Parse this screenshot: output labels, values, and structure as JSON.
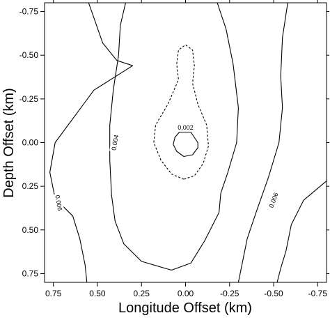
{
  "chart_data": {
    "type": "contour",
    "xlabel": "Longitude Offset (km)",
    "ylabel": "Depth Offset (km)",
    "xlim": [
      0.8,
      -0.8
    ],
    "ylim": [
      -0.8,
      0.8
    ],
    "x_ticks": [
      "0.75",
      "0.50",
      "0.25",
      "0.00",
      "-0.25",
      "-0.50",
      "-0.75"
    ],
    "x_tick_values": [
      0.75,
      0.5,
      0.25,
      0.0,
      -0.25,
      -0.5,
      -0.75
    ],
    "y_ticks": [
      "-0.75",
      "-0.50",
      "-0.25",
      "0.00",
      "0.25",
      "0.50",
      "0.75"
    ],
    "y_tick_values": [
      -0.75,
      -0.5,
      -0.25,
      0.0,
      0.25,
      0.5,
      0.75
    ],
    "grid": false,
    "contours": [
      {
        "level": "0.002",
        "style": "solid",
        "label_at": [
          0.0,
          -0.085
        ],
        "points": [
          [
            0.035,
            -0.06
          ],
          [
            -0.03,
            -0.06
          ],
          [
            -0.07,
            0.0
          ],
          [
            -0.07,
            0.03
          ],
          [
            -0.04,
            0.07
          ],
          [
            0.01,
            0.08
          ],
          [
            0.05,
            0.05
          ],
          [
            0.07,
            0.01
          ],
          [
            0.06,
            -0.03
          ],
          [
            0.035,
            -0.06
          ]
        ]
      },
      {
        "level": "",
        "style": "dashed",
        "label_at": null,
        "points": [
          [
            0.01,
            0.21
          ],
          [
            0.08,
            0.18
          ],
          [
            0.14,
            0.1
          ],
          [
            0.18,
            0.0
          ],
          [
            0.17,
            -0.1
          ],
          [
            0.1,
            -0.22
          ],
          [
            0.04,
            -0.36
          ],
          [
            0.05,
            -0.45
          ],
          [
            0.04,
            -0.53
          ],
          [
            0.0,
            -0.56
          ],
          [
            -0.04,
            -0.53
          ],
          [
            -0.05,
            -0.44
          ],
          [
            -0.04,
            -0.34
          ],
          [
            -0.07,
            -0.22
          ],
          [
            -0.12,
            -0.1
          ],
          [
            -0.13,
            0.02
          ],
          [
            -0.1,
            0.12
          ],
          [
            -0.05,
            0.19
          ],
          [
            0.01,
            0.21
          ]
        ]
      },
      {
        "level": "0.004",
        "style": "solid",
        "label_at": [
          0.4,
          0.0
        ],
        "label_angle": -80,
        "points": [
          [
            0.34,
            -0.8
          ],
          [
            0.37,
            -0.67
          ],
          [
            0.38,
            -0.5
          ],
          [
            0.41,
            -0.3
          ],
          [
            0.43,
            -0.1
          ],
          [
            0.43,
            0.1
          ],
          [
            0.42,
            0.3
          ],
          [
            0.4,
            0.45
          ],
          [
            0.35,
            0.58
          ],
          [
            0.25,
            0.68
          ],
          [
            0.08,
            0.73
          ],
          [
            -0.03,
            0.69
          ],
          [
            -0.11,
            0.56
          ],
          [
            -0.19,
            0.4
          ],
          [
            -0.2,
            0.29
          ],
          [
            -0.24,
            0.17
          ],
          [
            -0.29,
            0.0
          ],
          [
            -0.3,
            -0.2
          ],
          [
            -0.27,
            -0.45
          ],
          [
            -0.23,
            -0.65
          ],
          [
            -0.18,
            -0.8
          ]
        ]
      },
      {
        "level": "0.006",
        "style": "solid",
        "label_at": [
          0.72,
          0.345
        ],
        "label_angle": 80,
        "points": [
          [
            0.55,
            -0.8
          ],
          [
            0.47,
            -0.57
          ],
          [
            0.39,
            -0.47
          ],
          [
            0.3,
            -0.44
          ],
          [
            0.52,
            -0.3
          ],
          [
            0.74,
            0.0
          ],
          [
            0.77,
            0.17
          ],
          [
            0.74,
            0.32
          ],
          [
            0.64,
            0.42
          ],
          [
            0.6,
            0.55
          ],
          [
            0.57,
            0.7
          ],
          [
            0.56,
            0.8
          ]
        ]
      },
      {
        "level": "0.006",
        "style": "solid",
        "label_at": [
          -0.5,
          0.33
        ],
        "label_angle": -70,
        "points": [
          [
            -0.58,
            -0.8
          ],
          [
            -0.55,
            -0.6
          ],
          [
            -0.54,
            -0.38
          ],
          [
            -0.55,
            -0.2
          ],
          [
            -0.53,
            0.0
          ],
          [
            -0.47,
            0.2
          ],
          [
            -0.4,
            0.4
          ],
          [
            -0.35,
            0.55
          ],
          [
            -0.32,
            0.7
          ],
          [
            -0.3,
            0.8
          ]
        ]
      },
      {
        "level": "",
        "style": "solid",
        "label_at": null,
        "points": [
          [
            -0.8,
            0.22
          ],
          [
            -0.67,
            0.33
          ],
          [
            -0.6,
            0.47
          ],
          [
            -0.57,
            0.62
          ],
          [
            -0.54,
            0.72
          ],
          [
            -0.52,
            0.8
          ]
        ]
      }
    ]
  }
}
